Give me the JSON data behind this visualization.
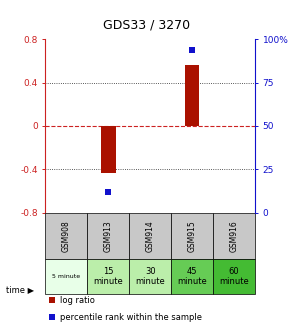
{
  "title": "GDS33 / 3270",
  "samples": [
    "GSM908",
    "GSM913",
    "GSM914",
    "GSM915",
    "GSM916"
  ],
  "time_labels": [
    "5 minute",
    "15\nminute",
    "30\nminute",
    "45\nminute",
    "60\nminute"
  ],
  "log_ratio": [
    0.0,
    -0.43,
    0.0,
    0.56,
    0.0
  ],
  "percentile_rank_pct": [
    null,
    12.0,
    null,
    94.0,
    null
  ],
  "ylim_left": [
    -0.8,
    0.8
  ],
  "ylim_right": [
    0,
    100
  ],
  "yticks_left": [
    -0.8,
    -0.4,
    0.0,
    0.4,
    0.8
  ],
  "yticks_right": [
    0,
    25,
    50,
    75,
    100
  ],
  "yticklabels_left": [
    "-0.8",
    "-0.4",
    "0",
    "0.4",
    "0.8"
  ],
  "yticklabels_right": [
    "0",
    "25",
    "50",
    "75",
    "100%"
  ],
  "bar_color": "#aa1100",
  "scatter_color": "#1111cc",
  "zero_line_color": "#cc2222",
  "dotted_line_color": "#222222",
  "table_header_bg": "#c8c8c8",
  "time_colors": [
    "#e8ffe8",
    "#bbeeaa",
    "#bbeeaa",
    "#66cc55",
    "#44bb33"
  ],
  "legend_bar_label": "log ratio",
  "legend_scatter_label": "percentile rank within the sample",
  "left_axis_color": "#cc2222",
  "right_axis_color": "#1111cc",
  "bar_width": 0.35
}
